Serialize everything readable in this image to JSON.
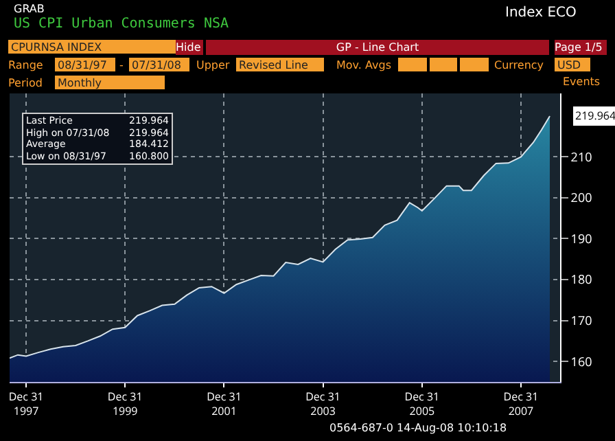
{
  "chart_data": {
    "type": "area",
    "title": "US CPI Urban Consumers NSA",
    "x": [
      "1997-08-31",
      "1997-10-31",
      "1997-12-31",
      "1998-03-31",
      "1998-06-30",
      "1998-09-30",
      "1998-12-31",
      "1999-03-31",
      "1999-06-30",
      "1999-09-30",
      "1999-12-31",
      "2000-03-31",
      "2000-06-30",
      "2000-09-30",
      "2000-12-31",
      "2001-03-31",
      "2001-06-30",
      "2001-09-30",
      "2001-12-31",
      "2002-03-31",
      "2002-06-30",
      "2002-09-30",
      "2002-12-31",
      "2003-03-31",
      "2003-06-30",
      "2003-09-30",
      "2003-12-31",
      "2004-03-31",
      "2004-06-30",
      "2004-09-30",
      "2004-12-31",
      "2005-03-31",
      "2005-06-30",
      "2005-09-30",
      "2005-11-30",
      "2005-12-31",
      "2006-03-31",
      "2006-06-30",
      "2006-09-30",
      "2006-10-31",
      "2006-12-31",
      "2007-03-31",
      "2007-06-30",
      "2007-09-30",
      "2007-12-31",
      "2008-03-31",
      "2008-05-31",
      "2008-07-31"
    ],
    "series": [
      {
        "color": "#2a8fa8",
        "values": [
          160.8,
          161.6,
          161.3,
          162.2,
          163.0,
          163.6,
          163.9,
          165.0,
          166.2,
          167.9,
          168.3,
          171.2,
          172.4,
          173.7,
          174.0,
          176.2,
          178.0,
          178.3,
          176.7,
          178.8,
          179.9,
          181.0,
          180.9,
          184.2,
          183.7,
          185.2,
          184.3,
          187.4,
          189.7,
          189.9,
          190.3,
          193.3,
          194.5,
          198.8,
          197.6,
          196.8,
          199.8,
          202.9,
          202.9,
          201.8,
          201.8,
          205.4,
          208.4,
          208.5,
          210.0,
          213.5,
          216.6,
          219.964
        ]
      }
    ],
    "xlim": [
      "1997-08-31",
      "2008-10-15"
    ],
    "xticks": [
      {
        "value": "1997-12-31",
        "label": "Dec 31\n1997"
      },
      {
        "value": "1999-12-31",
        "label": "Dec 31\n1999"
      },
      {
        "value": "2001-12-31",
        "label": "Dec 31\n2001"
      },
      {
        "value": "2003-12-31",
        "label": "Dec 31\n2003"
      },
      {
        "value": "2005-12-31",
        "label": "Dec 31\n2005"
      },
      {
        "value": "2007-12-31",
        "label": "Dec 31\n2007"
      }
    ],
    "ylim": [
      155,
      225.5
    ],
    "yticks": [
      160,
      170,
      180,
      190,
      200,
      210
    ],
    "grid": true,
    "annotations": [
      "GRAB",
      "Index ECO",
      "CPURNSA INDEX",
      "Hide",
      "GP - Line Chart",
      "Page 1/5",
      "Range",
      "08/31/97",
      "-",
      "07/31/08",
      "Upper",
      "Revised Line",
      "Mov. Avgs",
      "Currency",
      "USD",
      "Period",
      "Monthly",
      "Events",
      "Last Price",
      "219.964",
      "High on  07/31/08",
      "219.964",
      "Average",
      "184.412",
      "Low on  08/31/97",
      "160.800",
      {
        "text": "219.964",
        "x": "2008-07-31",
        "y": 219.964
      },
      "0564-687-0 14-Aug-08 10:10:18"
    ]
  }
}
